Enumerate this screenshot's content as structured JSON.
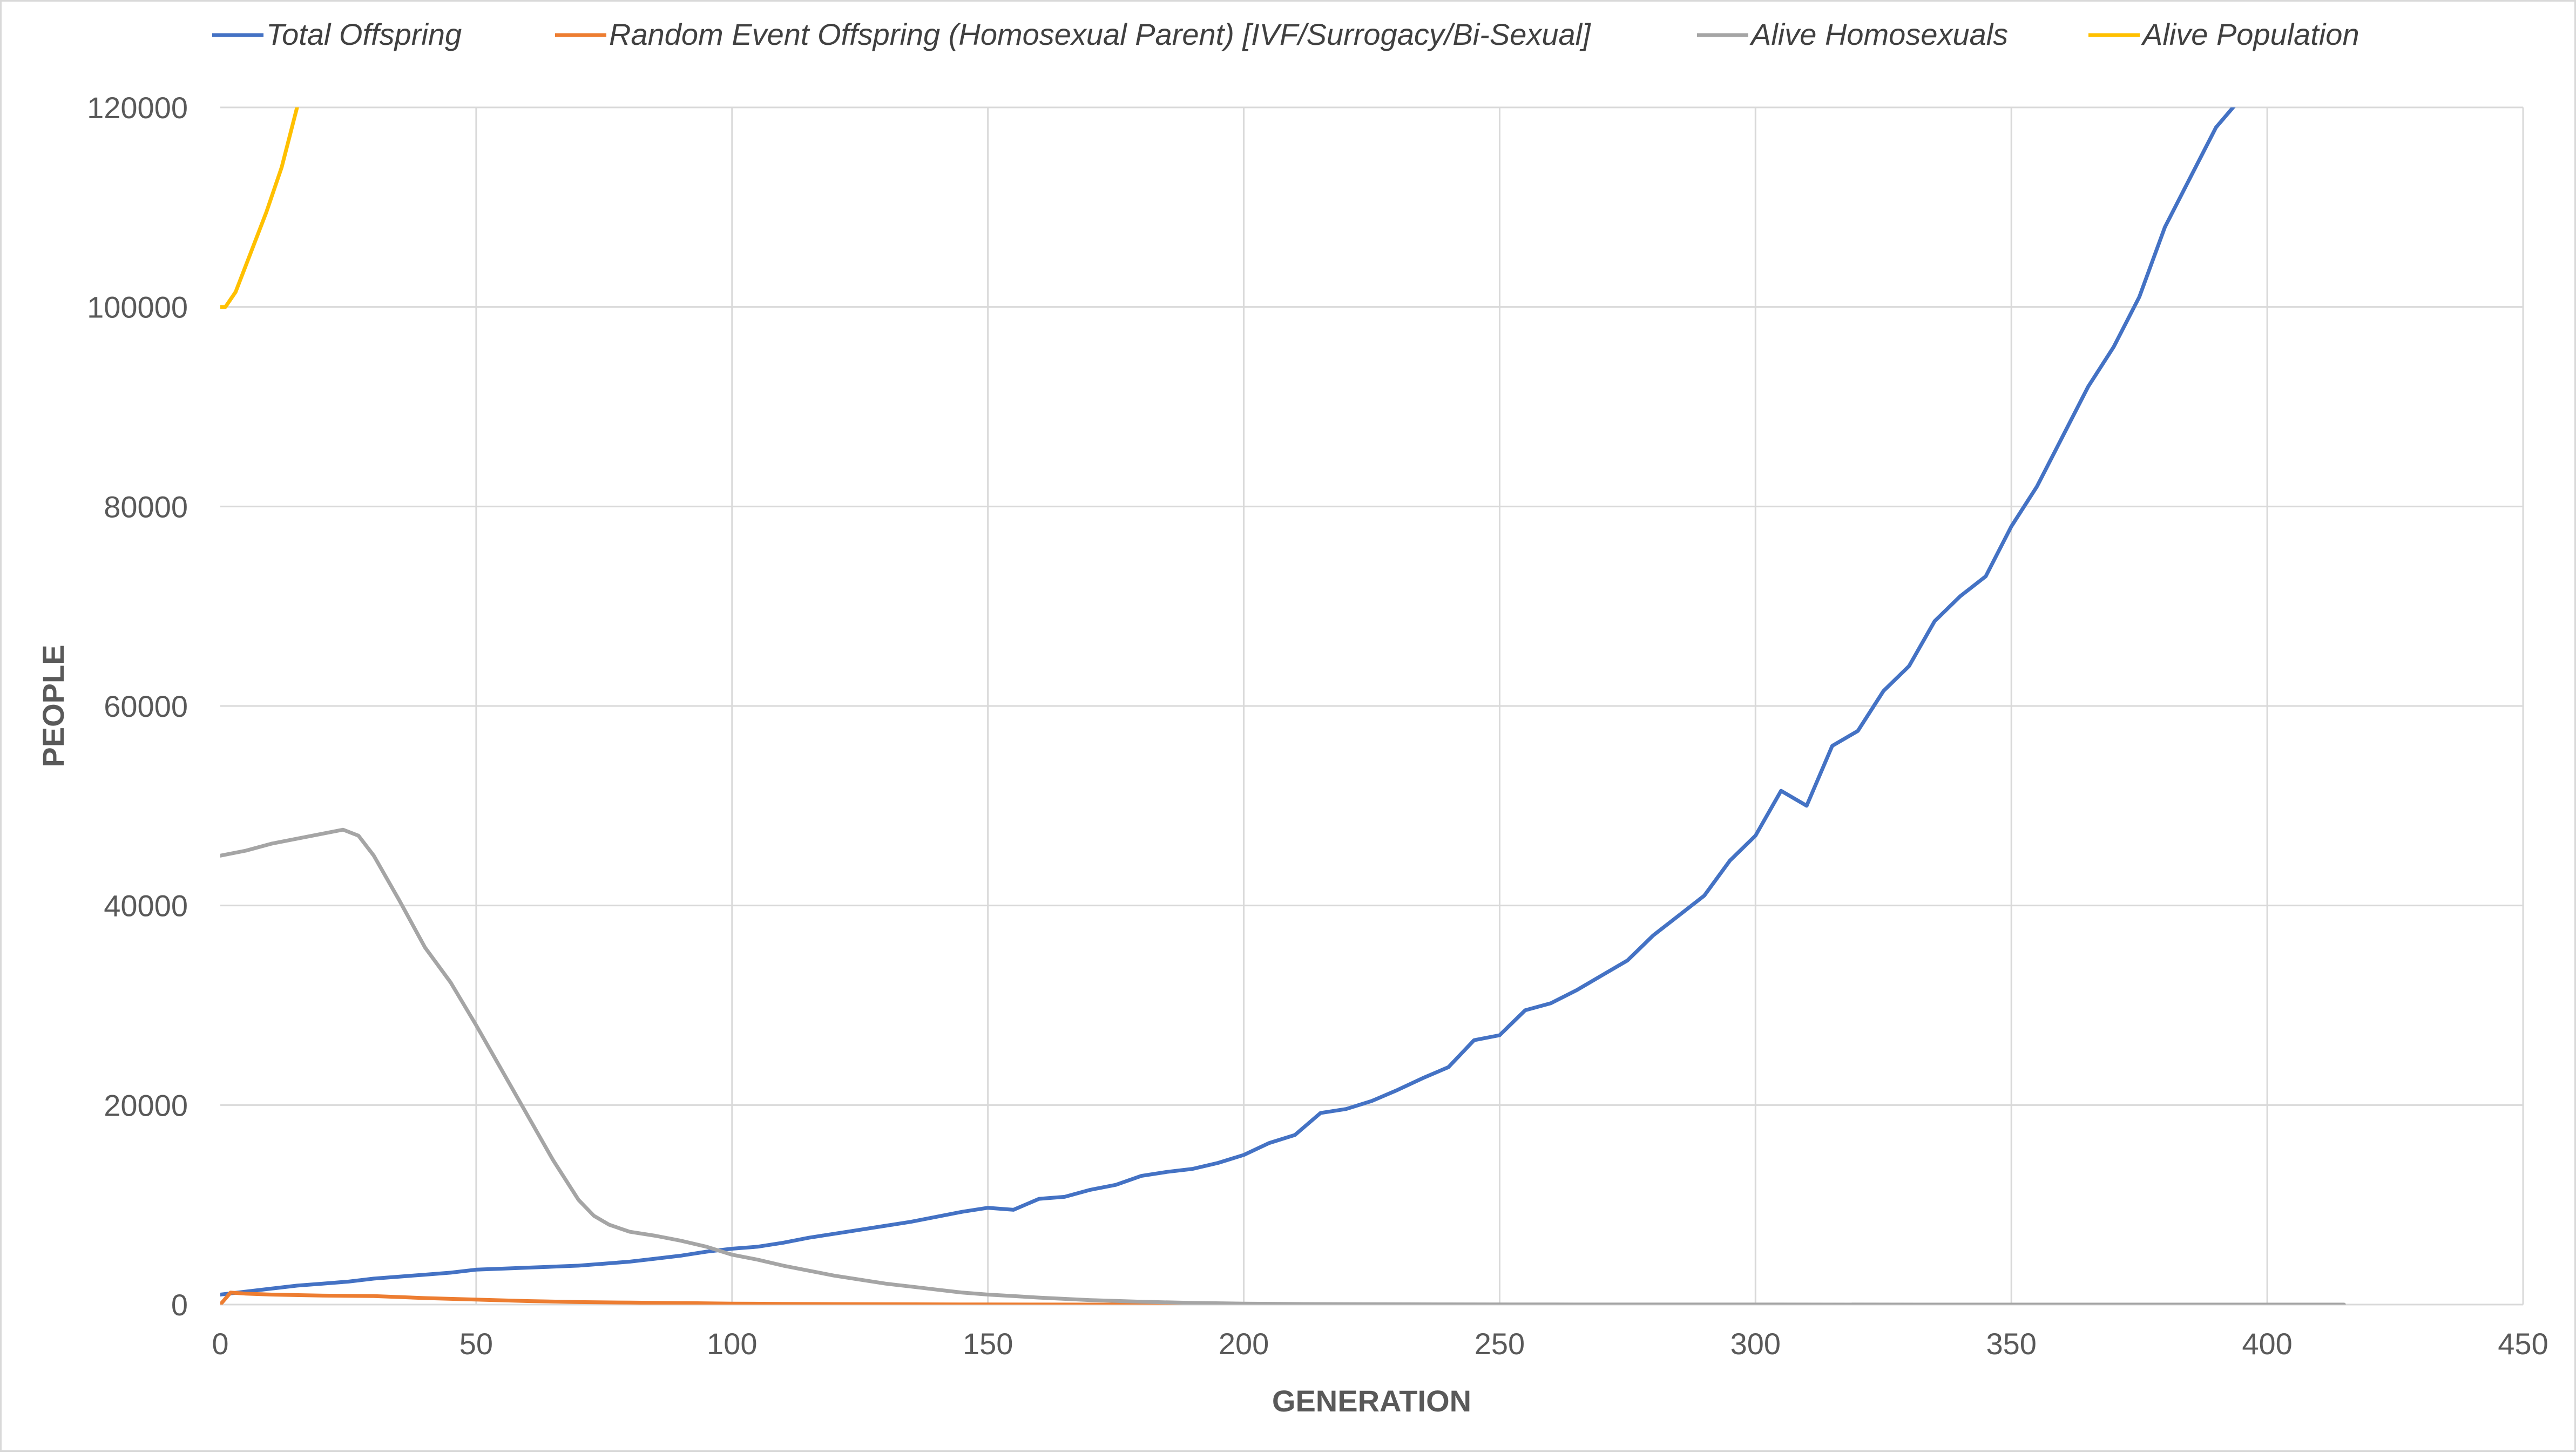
{
  "chart_data": {
    "type": "line",
    "xlabel": "GENERATION",
    "ylabel": "PEOPLE",
    "xlim": [
      0,
      450
    ],
    "ylim": [
      0,
      120000
    ],
    "x_ticks": [
      "0",
      "50",
      "100",
      "150",
      "200",
      "250",
      "300",
      "350",
      "400",
      "450"
    ],
    "y_ticks": [
      "0",
      "20000",
      "40000",
      "60000",
      "80000",
      "100000",
      "120000"
    ],
    "x_tick_values": [
      0,
      50,
      100,
      150,
      200,
      250,
      300,
      350,
      400,
      450
    ],
    "y_tick_values": [
      0,
      20000,
      40000,
      60000,
      80000,
      100000,
      120000
    ],
    "grid": true,
    "legend_position": "top",
    "series": [
      {
        "name": "Total Offspring",
        "color": "#4472C4",
        "points": [
          [
            0,
            1000
          ],
          [
            5,
            1300
          ],
          [
            10,
            1600
          ],
          [
            15,
            1900
          ],
          [
            20,
            2100
          ],
          [
            25,
            2300
          ],
          [
            30,
            2600
          ],
          [
            35,
            2800
          ],
          [
            40,
            3000
          ],
          [
            45,
            3200
          ],
          [
            50,
            3500
          ],
          [
            55,
            3600
          ],
          [
            60,
            3700
          ],
          [
            65,
            3800
          ],
          [
            70,
            3900
          ],
          [
            75,
            4100
          ],
          [
            80,
            4300
          ],
          [
            85,
            4600
          ],
          [
            90,
            4900
          ],
          [
            95,
            5300
          ],
          [
            100,
            5600
          ],
          [
            105,
            5800
          ],
          [
            110,
            6200
          ],
          [
            115,
            6700
          ],
          [
            120,
            7100
          ],
          [
            125,
            7500
          ],
          [
            130,
            7900
          ],
          [
            135,
            8300
          ],
          [
            140,
            8800
          ],
          [
            145,
            9300
          ],
          [
            150,
            9700
          ],
          [
            155,
            9500
          ],
          [
            160,
            10600
          ],
          [
            165,
            10800
          ],
          [
            170,
            11500
          ],
          [
            175,
            12000
          ],
          [
            180,
            12900
          ],
          [
            185,
            13300
          ],
          [
            190,
            13600
          ],
          [
            195,
            14200
          ],
          [
            200,
            15000
          ],
          [
            205,
            16200
          ],
          [
            210,
            17000
          ],
          [
            215,
            19200
          ],
          [
            220,
            19600
          ],
          [
            225,
            20400
          ],
          [
            230,
            21500
          ],
          [
            235,
            22700
          ],
          [
            240,
            23800
          ],
          [
            245,
            26500
          ],
          [
            250,
            27000
          ],
          [
            255,
            29500
          ],
          [
            260,
            30200
          ],
          [
            265,
            31500
          ],
          [
            270,
            33000
          ],
          [
            275,
            34500
          ],
          [
            280,
            37000
          ],
          [
            285,
            39000
          ],
          [
            290,
            41000
          ],
          [
            295,
            44500
          ],
          [
            300,
            47000
          ],
          [
            305,
            51500
          ],
          [
            310,
            50000
          ],
          [
            315,
            56000
          ],
          [
            320,
            57500
          ],
          [
            325,
            61500
          ],
          [
            330,
            64000
          ],
          [
            335,
            68500
          ],
          [
            340,
            71000
          ],
          [
            345,
            73000
          ],
          [
            350,
            78000
          ],
          [
            355,
            82000
          ],
          [
            360,
            87000
          ],
          [
            365,
            92000
          ],
          [
            370,
            96000
          ],
          [
            375,
            101000
          ],
          [
            380,
            108000
          ],
          [
            385,
            113000
          ],
          [
            390,
            118000
          ],
          [
            395,
            121000
          ],
          [
            400,
            126000
          ]
        ]
      },
      {
        "name": "Random Event Offspring (Homosexual Parent) [IVF/Surrogacy/Bi-Sexual]",
        "color": "#ED7D31",
        "points": [
          [
            0,
            0
          ],
          [
            2,
            1200
          ],
          [
            5,
            1100
          ],
          [
            10,
            1000
          ],
          [
            20,
            900
          ],
          [
            30,
            850
          ],
          [
            40,
            650
          ],
          [
            50,
            500
          ],
          [
            60,
            350
          ],
          [
            70,
            250
          ],
          [
            80,
            200
          ],
          [
            90,
            150
          ],
          [
            100,
            100
          ],
          [
            110,
            70
          ],
          [
            120,
            50
          ],
          [
            130,
            30
          ],
          [
            140,
            20
          ],
          [
            150,
            10
          ],
          [
            160,
            5
          ],
          [
            170,
            2
          ],
          [
            180,
            0
          ],
          [
            200,
            0
          ],
          [
            215,
            0
          ]
        ]
      },
      {
        "name": "Alive Homosexuals",
        "color": "#A5A5A5",
        "points": [
          [
            0,
            45000
          ],
          [
            5,
            45500
          ],
          [
            10,
            46200
          ],
          [
            15,
            46700
          ],
          [
            20,
            47200
          ],
          [
            24,
            47600
          ],
          [
            27,
            47000
          ],
          [
            30,
            45000
          ],
          [
            35,
            40500
          ],
          [
            40,
            35800
          ],
          [
            45,
            32300
          ],
          [
            50,
            28000
          ],
          [
            55,
            23500
          ],
          [
            60,
            19000
          ],
          [
            65,
            14500
          ],
          [
            70,
            10500
          ],
          [
            73,
            8900
          ],
          [
            76,
            8000
          ],
          [
            80,
            7300
          ],
          [
            85,
            6900
          ],
          [
            90,
            6400
          ],
          [
            95,
            5800
          ],
          [
            100,
            5000
          ],
          [
            105,
            4500
          ],
          [
            110,
            3900
          ],
          [
            115,
            3400
          ],
          [
            120,
            2900
          ],
          [
            125,
            2500
          ],
          [
            130,
            2100
          ],
          [
            135,
            1800
          ],
          [
            140,
            1500
          ],
          [
            145,
            1200
          ],
          [
            150,
            1000
          ],
          [
            155,
            850
          ],
          [
            160,
            700
          ],
          [
            170,
            450
          ],
          [
            180,
            280
          ],
          [
            190,
            170
          ],
          [
            200,
            100
          ],
          [
            210,
            60
          ],
          [
            220,
            40
          ],
          [
            240,
            20
          ],
          [
            260,
            10
          ],
          [
            300,
            5
          ],
          [
            350,
            2
          ],
          [
            400,
            1
          ],
          [
            415,
            0
          ]
        ]
      },
      {
        "name": "Alive Population",
        "color": "#FFC000",
        "points": [
          [
            0,
            100000
          ],
          [
            1,
            100000
          ],
          [
            3,
            101500
          ],
          [
            6,
            105500
          ],
          [
            9,
            109500
          ],
          [
            12,
            114000
          ],
          [
            15,
            120000
          ]
        ]
      }
    ]
  }
}
